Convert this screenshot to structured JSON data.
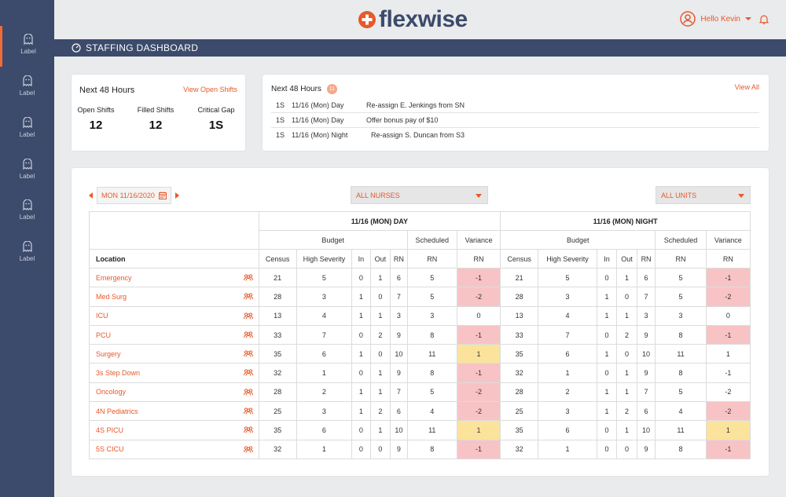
{
  "brand": {
    "name": "flexwise",
    "accent": "#e8582a",
    "navy": "#3c4a6b"
  },
  "user": {
    "greeting": "Hello Kevin"
  },
  "sidebar": {
    "items": [
      {
        "label": "Label"
      },
      {
        "label": "Label"
      },
      {
        "label": "Label"
      },
      {
        "label": "Label"
      },
      {
        "label": "Label"
      },
      {
        "label": "Label"
      }
    ]
  },
  "page": {
    "title": "STAFFING DASHBOARD"
  },
  "summary": {
    "title": "Next 48 Hours",
    "link": "View Open Shifts",
    "kpis": [
      {
        "label": "Open Shifts",
        "value": "12"
      },
      {
        "label": "Filled Shifts",
        "value": "12"
      },
      {
        "label": "Critical Gap",
        "value": "1S"
      }
    ]
  },
  "actions": {
    "title": "Next 48 Hours",
    "badge": "11",
    "link": "View All",
    "rows": [
      {
        "code": "1S",
        "shift": "11/16 (Mon) Day",
        "text": "Re-assign E. Jenkings from SN"
      },
      {
        "code": "1S",
        "shift": "11/16 (Mon) Day",
        "text": "Offer bonus pay of $10"
      },
      {
        "code": "1S",
        "shift": "11/16 (Mon) Night",
        "text": "Re-assign S. Duncan from S3"
      }
    ]
  },
  "filters": {
    "date": "MON 11/16/2020",
    "nurses": "ALL NURSES",
    "units": "ALL UNITS"
  },
  "table": {
    "shift_day": "11/16 (MON) DAY",
    "shift_night": "11/16 (MON) NIGHT",
    "groups": {
      "budget": "Budget",
      "scheduled": "Scheduled",
      "variance": "Variance"
    },
    "cols": {
      "location": "Location",
      "census": "Census",
      "high_severity": "High Severity",
      "in": "In",
      "out": "Out",
      "rn": "RN"
    },
    "rows": [
      {
        "loc": "Emergency",
        "day": [
          "21",
          "5",
          "0",
          "1",
          "6",
          "5",
          "-1"
        ],
        "dayv": "red",
        "night": [
          "21",
          "5",
          "0",
          "1",
          "6",
          "5",
          "-1"
        ],
        "nightv": "red"
      },
      {
        "loc": "Med Surg",
        "day": [
          "28",
          "3",
          "1",
          "0",
          "7",
          "5",
          "-2"
        ],
        "dayv": "red",
        "night": [
          "28",
          "3",
          "1",
          "0",
          "7",
          "5",
          "-2"
        ],
        "nightv": "red"
      },
      {
        "loc": "ICU",
        "day": [
          "13",
          "4",
          "1",
          "1",
          "3",
          "3",
          "0"
        ],
        "dayv": "",
        "night": [
          "13",
          "4",
          "1",
          "1",
          "3",
          "3",
          "0"
        ],
        "nightv": ""
      },
      {
        "loc": "PCU",
        "day": [
          "33",
          "7",
          "0",
          "2",
          "9",
          "8",
          "-1"
        ],
        "dayv": "red",
        "night": [
          "33",
          "7",
          "0",
          "2",
          "9",
          "8",
          "-1"
        ],
        "nightv": "red"
      },
      {
        "loc": "Surgery",
        "day": [
          "35",
          "6",
          "1",
          "0",
          "10",
          "11",
          "1"
        ],
        "dayv": "yel",
        "night": [
          "35",
          "6",
          "1",
          "0",
          "10",
          "11",
          "1"
        ],
        "nightv": ""
      },
      {
        "loc": "3s Step Down",
        "day": [
          "32",
          "1",
          "0",
          "1",
          "9",
          "8",
          "-1"
        ],
        "dayv": "red",
        "night": [
          "32",
          "1",
          "0",
          "1",
          "9",
          "8",
          "-1"
        ],
        "nightv": ""
      },
      {
        "loc": "Oncology",
        "day": [
          "28",
          "2",
          "1",
          "1",
          "7",
          "5",
          "-2"
        ],
        "dayv": "red",
        "night": [
          "28",
          "2",
          "1",
          "1",
          "7",
          "5",
          "-2"
        ],
        "nightv": ""
      },
      {
        "loc": "4N Pediatrics",
        "day": [
          "25",
          "3",
          "1",
          "2",
          "6",
          "4",
          "-2"
        ],
        "dayv": "red",
        "night": [
          "25",
          "3",
          "1",
          "2",
          "6",
          "4",
          "-2"
        ],
        "nightv": "red"
      },
      {
        "loc": "4S PICU",
        "day": [
          "35",
          "6",
          "0",
          "1",
          "10",
          "11",
          "1"
        ],
        "dayv": "yel",
        "night": [
          "35",
          "6",
          "0",
          "1",
          "10",
          "11",
          "1"
        ],
        "nightv": "yel"
      },
      {
        "loc": "5S CICU",
        "day": [
          "32",
          "1",
          "0",
          "0",
          "9",
          "8",
          "-1"
        ],
        "dayv": "red",
        "night": [
          "32",
          "1",
          "0",
          "0",
          "9",
          "8",
          "-1"
        ],
        "nightv": "red"
      }
    ]
  }
}
